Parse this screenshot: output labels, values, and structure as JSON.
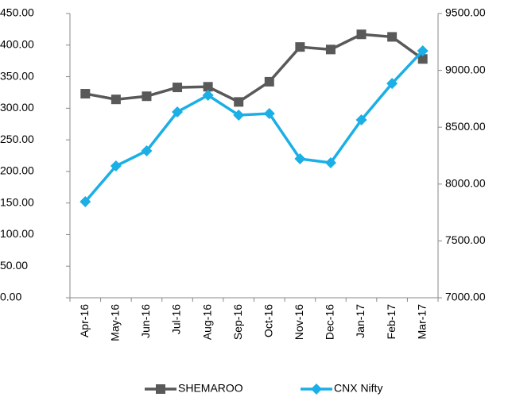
{
  "chart_data": {
    "type": "line",
    "categories": [
      "Apr-16",
      "May-16",
      "Jun-16",
      "Jul-16",
      "Aug-16",
      "Sep-16",
      "Oct-16",
      "Nov-16",
      "Dec-16",
      "Jan-17",
      "Feb-17",
      "Mar-17"
    ],
    "series": [
      {
        "name": "SHEMAROO",
        "color": "#595959",
        "marker": "square",
        "values": [
          323,
          314,
          319,
          333,
          334,
          310,
          342,
          397,
          393,
          417,
          413,
          378
        ]
      },
      {
        "name": "CNX Nifty",
        "color": "#1aafe6",
        "marker": "diamond",
        "axis": "y2",
        "values": [
          7845,
          8159,
          8292,
          8634,
          8781,
          8606,
          8620,
          8222,
          8187,
          8564,
          8885,
          9172
        ]
      }
    ],
    "ylim": [
      0,
      450
    ],
    "yticks": [
      {
        "value": 0,
        "label": "0.00"
      },
      {
        "value": 50,
        "label": "50.00"
      },
      {
        "value": 100,
        "label": "100.00"
      },
      {
        "value": 150,
        "label": "150.00"
      },
      {
        "value": 200,
        "label": "200.00"
      },
      {
        "value": 250,
        "label": "250.00"
      },
      {
        "value": 300,
        "label": "300.00"
      },
      {
        "value": 350,
        "label": "350.00"
      },
      {
        "value": 400,
        "label": "400.00"
      },
      {
        "value": 450,
        "label": "450.00"
      }
    ],
    "y2lim": [
      7000,
      9500
    ],
    "y2ticks": [
      {
        "value": 7000,
        "label": "7000.00"
      },
      {
        "value": 7500,
        "label": "7500.00"
      },
      {
        "value": 8000,
        "label": "8000.00"
      },
      {
        "value": 8500,
        "label": "8500.00"
      },
      {
        "value": 9000,
        "label": "9000.00"
      },
      {
        "value": 9500,
        "label": "9500.00"
      }
    ],
    "legend": "bottom"
  }
}
